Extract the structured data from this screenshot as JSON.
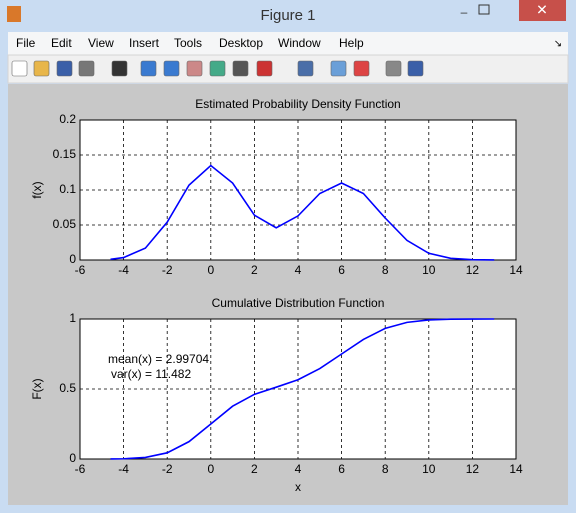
{
  "window": {
    "title": "Figure 1",
    "menu": [
      "File",
      "Edit",
      "View",
      "Insert",
      "Tools",
      "Desktop",
      "Window",
      "Help"
    ]
  },
  "chart_data": [
    {
      "type": "line",
      "title": "Estimated Probability Density Function",
      "ylabel": "f(x)",
      "color": "#0000ff",
      "grid": true,
      "x": [
        -4.6,
        -4,
        -3,
        -2,
        -1,
        0,
        1,
        2,
        3,
        4,
        5,
        6,
        7,
        8,
        9,
        10,
        11,
        12,
        13
      ],
      "values": [
        0.001,
        0.0035,
        0.017,
        0.054,
        0.107,
        0.135,
        0.11,
        0.064,
        0.046,
        0.063,
        0.095,
        0.11,
        0.095,
        0.06,
        0.028,
        0.0096,
        0.0024,
        0.0005,
        0.0001
      ],
      "xlim": [
        -6,
        14
      ],
      "xticks": [
        -6,
        -4,
        -2,
        0,
        2,
        4,
        6,
        8,
        10,
        12,
        14
      ],
      "ylim": [
        0,
        0.2
      ],
      "yticks": [
        0,
        0.05,
        0.1,
        0.15,
        0.2
      ]
    },
    {
      "type": "line",
      "title": "Cumulative Distribution Function",
      "xlabel": "x",
      "ylabel": "F(x)",
      "color": "#0000ff",
      "grid": true,
      "annotations": [
        "mean(x) = 2.99704",
        "var(x) = 11.482"
      ],
      "x": [
        -4.6,
        -4,
        -3,
        -2,
        -1,
        0,
        1,
        2,
        3,
        4,
        5,
        6,
        7,
        8,
        9,
        10,
        11,
        12,
        13
      ],
      "values": [
        0.0005,
        0.0017,
        0.011,
        0.044,
        0.124,
        0.25,
        0.377,
        0.462,
        0.513,
        0.566,
        0.646,
        0.75,
        0.854,
        0.933,
        0.976,
        0.993,
        0.9985,
        0.9997,
        1
      ],
      "xlim": [
        -6,
        14
      ],
      "xticks": [
        -6,
        -4,
        -2,
        0,
        2,
        4,
        6,
        8,
        10,
        12,
        14
      ],
      "ylim": [
        0,
        1
      ],
      "yticks": [
        0,
        0.5,
        1
      ]
    }
  ]
}
